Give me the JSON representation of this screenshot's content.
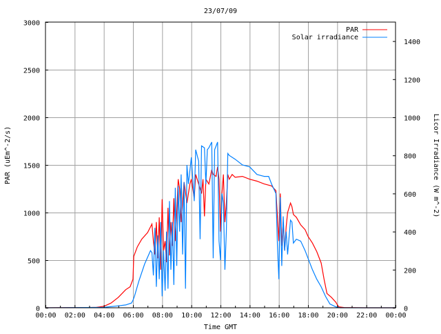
{
  "chart_data": {
    "type": "line",
    "title": "23/07/09",
    "xlabel": "Time GMT",
    "ylabel": "PAR (uEm^-2/s)",
    "y2label": "Licor Irradiance (W m^-2)",
    "xlim": [
      0,
      24
    ],
    "ylim": [
      0,
      3000
    ],
    "y2lim": [
      0,
      1500
    ],
    "grid": true,
    "legend_position": "top-right",
    "x_ticks": [
      0,
      2,
      4,
      6,
      8,
      10,
      12,
      14,
      16,
      18,
      20,
      22,
      24
    ],
    "x_tick_labels": [
      "00:00",
      "02:00",
      "04:00",
      "06:00",
      "08:00",
      "10:00",
      "12:00",
      "14:00",
      "16:00",
      "18:00",
      "20:00",
      "22:00",
      "00:00"
    ],
    "y_ticks": [
      0,
      500,
      1000,
      1500,
      2000,
      2500,
      3000
    ],
    "y_tick_labels": [
      "0",
      "500",
      "1000",
      "1500",
      "2000",
      "2500",
      "3000"
    ],
    "y2_ticks": [
      0,
      200,
      400,
      600,
      800,
      1000,
      1200,
      1400
    ],
    "y2_tick_labels": [
      "0",
      "200",
      "400",
      "600",
      "800",
      "1000",
      "1200",
      "1400"
    ],
    "series": [
      {
        "name": "PAR",
        "axis": "left",
        "color": "#ff0000",
        "points": [
          [
            0,
            0
          ],
          [
            1,
            2
          ],
          [
            2,
            3
          ],
          [
            3,
            3
          ],
          [
            3.5,
            5
          ],
          [
            4,
            15
          ],
          [
            4.5,
            50
          ],
          [
            5,
            110
          ],
          [
            5.5,
            190
          ],
          [
            5.8,
            220
          ],
          [
            6,
            300
          ],
          [
            6.05,
            540
          ],
          [
            6.3,
            640
          ],
          [
            6.6,
            720
          ],
          [
            7,
            790
          ],
          [
            7.3,
            880
          ],
          [
            7.4,
            700
          ],
          [
            7.5,
            560
          ],
          [
            7.6,
            900
          ],
          [
            7.7,
            520
          ],
          [
            7.8,
            950
          ],
          [
            7.9,
            400
          ],
          [
            8,
            1140
          ],
          [
            8.1,
            600
          ],
          [
            8.2,
            700
          ],
          [
            8.3,
            480
          ],
          [
            8.4,
            1050
          ],
          [
            8.5,
            550
          ],
          [
            8.6,
            900
          ],
          [
            8.7,
            650
          ],
          [
            8.8,
            1150
          ],
          [
            8.9,
            700
          ],
          [
            9,
            1000
          ],
          [
            9.1,
            1350
          ],
          [
            9.2,
            1250
          ],
          [
            9.3,
            900
          ],
          [
            9.5,
            1320
          ],
          [
            9.7,
            1100
          ],
          [
            9.9,
            1300
          ],
          [
            10,
            1350
          ],
          [
            10.2,
            1150
          ],
          [
            10.3,
            1400
          ],
          [
            10.5,
            1300
          ],
          [
            10.7,
            1200
          ],
          [
            10.8,
            1350
          ],
          [
            10.9,
            960
          ],
          [
            11,
            1350
          ],
          [
            11.2,
            1300
          ],
          [
            11.4,
            1450
          ],
          [
            11.5,
            1400
          ],
          [
            11.7,
            1380
          ],
          [
            11.8,
            1480
          ],
          [
            11.9,
            1350
          ],
          [
            12,
            800
          ],
          [
            12.1,
            1200
          ],
          [
            12.2,
            1400
          ],
          [
            12.3,
            900
          ],
          [
            12.4,
            1100
          ],
          [
            12.5,
            1400
          ],
          [
            12.6,
            1350
          ],
          [
            12.8,
            1400
          ],
          [
            13,
            1370
          ],
          [
            13.5,
            1380
          ],
          [
            14,
            1350
          ],
          [
            14.5,
            1330
          ],
          [
            15,
            1300
          ],
          [
            15.5,
            1280
          ],
          [
            15.8,
            1230
          ],
          [
            16,
            700
          ],
          [
            16.1,
            1200
          ],
          [
            16.2,
            650
          ],
          [
            16.3,
            900
          ],
          [
            16.4,
            600
          ],
          [
            16.5,
            850
          ],
          [
            16.6,
            1000
          ],
          [
            16.8,
            1100
          ],
          [
            16.9,
            1060
          ],
          [
            17,
            980
          ],
          [
            17.2,
            950
          ],
          [
            17.5,
            870
          ],
          [
            17.8,
            820
          ],
          [
            18,
            750
          ],
          [
            18.3,
            680
          ],
          [
            18.6,
            590
          ],
          [
            18.9,
            470
          ],
          [
            19.1,
            300
          ],
          [
            19.3,
            150
          ],
          [
            19.6,
            110
          ],
          [
            19.9,
            60
          ],
          [
            20.1,
            10
          ],
          [
            20.5,
            2
          ],
          [
            22,
            0
          ],
          [
            24,
            0
          ]
        ]
      },
      {
        "name": "Solar irradiance",
        "axis": "right",
        "color": "#0080ff",
        "points": [
          [
            0,
            0
          ],
          [
            4,
            2
          ],
          [
            5,
            10
          ],
          [
            5.5,
            15
          ],
          [
            5.9,
            25
          ],
          [
            6,
            40
          ],
          [
            6.1,
            60
          ],
          [
            6.4,
            140
          ],
          [
            6.8,
            230
          ],
          [
            7.2,
            300
          ],
          [
            7.3,
            290
          ],
          [
            7.4,
            170
          ],
          [
            7.5,
            420
          ],
          [
            7.6,
            110
          ],
          [
            7.7,
            380
          ],
          [
            7.8,
            150
          ],
          [
            7.9,
            450
          ],
          [
            8,
            60
          ],
          [
            8.1,
            300
          ],
          [
            8.2,
            90
          ],
          [
            8.3,
            400
          ],
          [
            8.4,
            100
          ],
          [
            8.5,
            560
          ],
          [
            8.6,
            200
          ],
          [
            8.7,
            450
          ],
          [
            8.8,
            120
          ],
          [
            8.9,
            630
          ],
          [
            9,
            220
          ],
          [
            9.1,
            640
          ],
          [
            9.2,
            400
          ],
          [
            9.3,
            700
          ],
          [
            9.4,
            280
          ],
          [
            9.5,
            660
          ],
          [
            9.6,
            100
          ],
          [
            9.7,
            750
          ],
          [
            9.8,
            650
          ],
          [
            10,
            790
          ],
          [
            10.2,
            560
          ],
          [
            10.3,
            830
          ],
          [
            10.5,
            770
          ],
          [
            10.6,
            360
          ],
          [
            10.7,
            850
          ],
          [
            10.9,
            840
          ],
          [
            11,
            650
          ],
          [
            11.1,
            830
          ],
          [
            11.2,
            840
          ],
          [
            11.4,
            870
          ],
          [
            11.5,
            260
          ],
          [
            11.6,
            830
          ],
          [
            11.8,
            870
          ],
          [
            11.9,
            350
          ],
          [
            12,
            250
          ],
          [
            12.1,
            600
          ],
          [
            12.2,
            550
          ],
          [
            12.3,
            200
          ],
          [
            12.4,
            400
          ],
          [
            12.5,
            810
          ],
          [
            12.6,
            800
          ],
          [
            13,
            780
          ],
          [
            13.5,
            750
          ],
          [
            14,
            740
          ],
          [
            14.5,
            700
          ],
          [
            15,
            690
          ],
          [
            15.3,
            690
          ],
          [
            15.5,
            650
          ],
          [
            15.8,
            600
          ],
          [
            15.9,
            330
          ],
          [
            16,
            150
          ],
          [
            16.1,
            580
          ],
          [
            16.2,
            220
          ],
          [
            16.3,
            480
          ],
          [
            16.4,
            300
          ],
          [
            16.5,
            400
          ],
          [
            16.6,
            280
          ],
          [
            16.8,
            460
          ],
          [
            16.9,
            450
          ],
          [
            17,
            340
          ],
          [
            17.2,
            360
          ],
          [
            17.5,
            350
          ],
          [
            17.8,
            300
          ],
          [
            18,
            260
          ],
          [
            18.3,
            200
          ],
          [
            18.6,
            150
          ],
          [
            18.9,
            110
          ],
          [
            19.2,
            60
          ],
          [
            19.5,
            20
          ],
          [
            19.9,
            5
          ],
          [
            20.2,
            0
          ],
          [
            24,
            0
          ]
        ]
      }
    ]
  }
}
